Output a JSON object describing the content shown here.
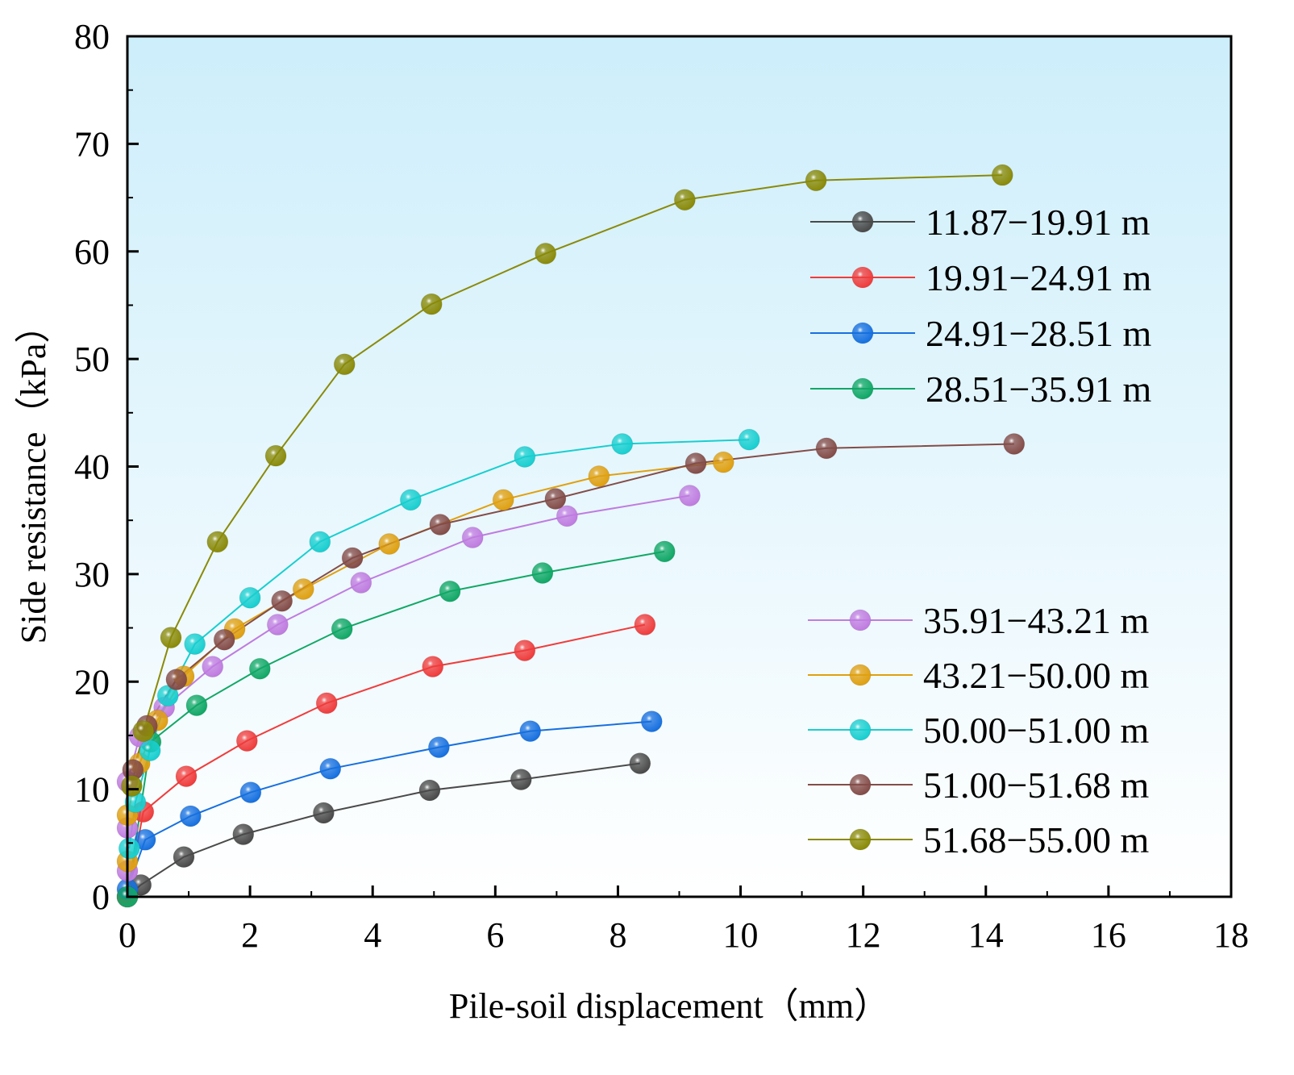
{
  "chart_data": {
    "type": "line",
    "title": "",
    "xlabel": "Pile-soil displacement（mm）",
    "ylabel": "Side resistance（kPa）",
    "xlim": [
      0,
      18
    ],
    "ylim": [
      0,
      80
    ],
    "xticks": [
      0,
      2,
      4,
      6,
      8,
      10,
      12,
      14,
      16,
      18
    ],
    "yticks": [
      0,
      10,
      20,
      30,
      40,
      50,
      60,
      70,
      80
    ],
    "grid": false,
    "background": {
      "top": "#cdeefb",
      "bottom": "#ffffff"
    },
    "legend": [
      {
        "placement": "right-upper",
        "entries": [
          0,
          1,
          2,
          3
        ]
      },
      {
        "placement": "right-lower",
        "entries": [
          4,
          5,
          6,
          7,
          8
        ]
      }
    ],
    "series": [
      {
        "name": "11.87−19.91 m",
        "color": "#4a4a4a",
        "x": [
          0,
          0.22,
          0.92,
          1.89,
          3.2,
          4.93,
          6.42,
          8.36
        ],
        "y": [
          0,
          1.1,
          3.7,
          5.8,
          7.8,
          9.9,
          10.9,
          12.4
        ]
      },
      {
        "name": "19.91−24.91 m",
        "color": "#f03c3c",
        "x": [
          0,
          0.26,
          0.96,
          1.95,
          3.25,
          4.98,
          6.48,
          8.44
        ],
        "y": [
          0,
          7.9,
          11.2,
          14.5,
          18.0,
          21.4,
          22.9,
          25.3
        ]
      },
      {
        "name": "24.91−28.51 m",
        "color": "#1670e0",
        "x": [
          0,
          0.29,
          1.03,
          2.01,
          3.31,
          5.08,
          6.57,
          8.55
        ],
        "y": [
          0.7,
          5.3,
          7.5,
          9.7,
          11.9,
          13.9,
          15.4,
          16.3
        ]
      },
      {
        "name": "28.51−35.91 m",
        "color": "#10a866",
        "x": [
          0,
          0.38,
          1.13,
          2.16,
          3.5,
          5.26,
          6.77,
          8.76
        ],
        "y": [
          0,
          14.4,
          17.8,
          21.2,
          24.9,
          28.4,
          30.1,
          32.1
        ]
      },
      {
        "name": "35.91−43.21 m",
        "color": "#c07ce0",
        "x": [
          0,
          0,
          0,
          0.2,
          0.6,
          1.39,
          2.45,
          3.81,
          5.63,
          7.17,
          9.17
        ],
        "y": [
          2.4,
          6.4,
          10.7,
          14.9,
          17.6,
          21.4,
          25.3,
          29.2,
          33.4,
          35.4,
          37.3
        ]
      },
      {
        "name": "43.21−50.00 m",
        "color": "#e0a010",
        "x": [
          0,
          0,
          0.2,
          0.49,
          0.92,
          1.75,
          2.87,
          4.27,
          6.13,
          7.69,
          9.72
        ],
        "y": [
          3.3,
          7.6,
          12.4,
          16.4,
          20.5,
          24.9,
          28.6,
          32.8,
          36.9,
          39.1,
          40.4
        ]
      },
      {
        "name": "50.00−51.00 m",
        "color": "#18cfd0",
        "x": [
          0.03,
          0.13,
          0.37,
          0.66,
          1.1,
          2.0,
          3.14,
          4.62,
          6.48,
          8.07,
          10.14
        ],
        "y": [
          4.5,
          8.8,
          13.6,
          18.7,
          23.5,
          27.8,
          33.0,
          36.9,
          40.9,
          42.1,
          42.5
        ]
      },
      {
        "name": "51.00−51.68 m",
        "color": "#844c48",
        "x": [
          0.09,
          0.32,
          0.8,
          1.58,
          2.52,
          3.67,
          5.1,
          6.98,
          9.27,
          11.4,
          14.46
        ],
        "y": [
          11.8,
          15.9,
          20.2,
          23.9,
          27.5,
          31.5,
          34.6,
          37.0,
          40.3,
          41.7,
          42.1
        ]
      },
      {
        "name": "51.68−55.00 m",
        "color": "#8a8a08",
        "x": [
          0.07,
          0.26,
          0.71,
          1.47,
          2.42,
          3.54,
          4.96,
          6.82,
          9.09,
          11.23,
          14.27
        ],
        "y": [
          10.3,
          15.4,
          24.1,
          33.0,
          41.0,
          49.5,
          55.1,
          59.8,
          64.8,
          66.6,
          67.1
        ]
      }
    ]
  }
}
